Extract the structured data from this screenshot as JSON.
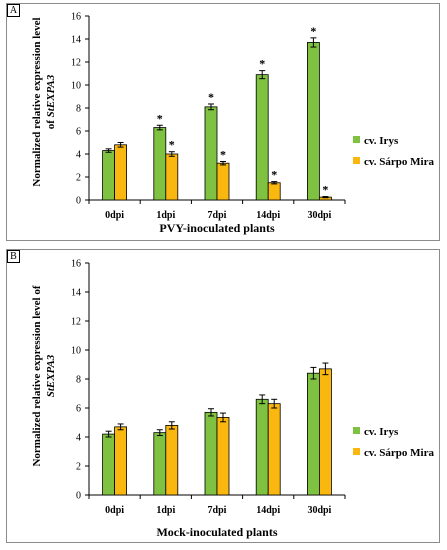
{
  "colors": {
    "irys": "#7fc241",
    "sarpo": "#f9b70f",
    "axis": "#000000"
  },
  "chart_data": [
    {
      "type": "bar",
      "panel_label": "A",
      "xlabel": "PVY-inoculated plants",
      "ylabel_line1": "Normalized  relative expression level",
      "ylabel_line2_prefix": "of ",
      "ylabel_line2_gene": "StEXPA3",
      "categories": [
        "0dpi",
        "1dpi",
        "7dpi",
        "14dpi",
        "30dpi"
      ],
      "ylim": [
        0,
        16
      ],
      "yticks": [
        0,
        2,
        4,
        6,
        8,
        10,
        12,
        14,
        16
      ],
      "ytick_labels": [
        "0",
        "2",
        "4",
        "6",
        "8",
        "10",
        "12",
        "14",
        "16"
      ],
      "legend_position": "right",
      "significance_marker": "*",
      "series": [
        {
          "name": "cv. Irys",
          "color": "#7fc241",
          "values": [
            4.3,
            6.3,
            8.1,
            10.9,
            13.7
          ],
          "errors": [
            0.15,
            0.2,
            0.25,
            0.35,
            0.4
          ],
          "significant": [
            false,
            true,
            true,
            true,
            true
          ]
        },
        {
          "name": "cv. Sárpo Mira",
          "color": "#f9b70f",
          "values": [
            4.8,
            4.0,
            3.2,
            1.5,
            0.25
          ],
          "errors": [
            0.2,
            0.2,
            0.15,
            0.1,
            0.05
          ],
          "significant": [
            false,
            true,
            true,
            true,
            true
          ]
        }
      ]
    },
    {
      "type": "bar",
      "panel_label": "B",
      "xlabel": "Mock-inoculated plants",
      "ylabel_line1": "Normalized  relative expression level of",
      "ylabel_line2_prefix": "",
      "ylabel_line2_gene": "StEXPA3",
      "categories": [
        "0dpi",
        "1dpi",
        "7dpi",
        "14dpi",
        "30dpi"
      ],
      "ylim": [
        0,
        16
      ],
      "yticks": [
        0,
        2,
        4,
        6,
        8,
        10,
        12,
        14,
        16
      ],
      "ytick_labels": [
        "0",
        "2",
        "4",
        "6",
        "8",
        "10",
        "12",
        "14",
        "16"
      ],
      "legend_position": "right",
      "significance_marker": "",
      "series": [
        {
          "name": "cv. Irys",
          "color": "#7fc241",
          "values": [
            4.2,
            4.3,
            5.7,
            6.6,
            8.4
          ],
          "errors": [
            0.2,
            0.2,
            0.25,
            0.3,
            0.4
          ],
          "significant": [
            false,
            false,
            false,
            false,
            false
          ]
        },
        {
          "name": "cv. Sárpo Mira",
          "color": "#f9b70f",
          "values": [
            4.7,
            4.8,
            5.35,
            6.3,
            8.7
          ],
          "errors": [
            0.2,
            0.25,
            0.3,
            0.3,
            0.4
          ],
          "significant": [
            false,
            false,
            false,
            false,
            false
          ]
        }
      ]
    }
  ]
}
